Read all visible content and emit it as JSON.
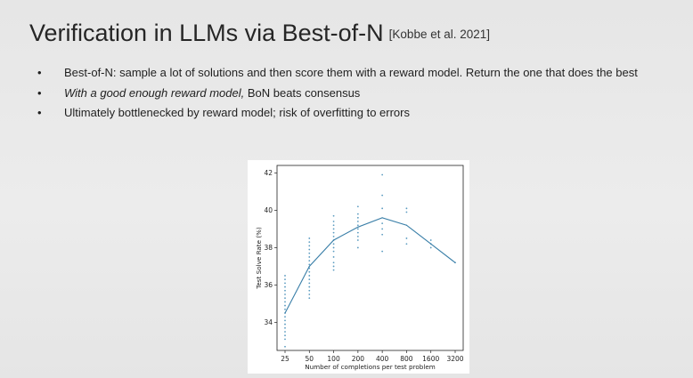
{
  "slide": {
    "title": "Verification in LLMs via Best-of-N",
    "citation": "[Kobbe et al. 2021]",
    "bullets": [
      {
        "bullet": "•",
        "italic": "",
        "text": "Best-of-N: sample a lot of solutions and then score them with a reward model. Return the one that does the best"
      },
      {
        "bullet": "•",
        "italic": "With a good enough reward model,",
        "text": " BoN beats consensus"
      },
      {
        "bullet": "•",
        "italic": "",
        "text": "Ultimately bottlenecked by reward model; risk of overfitting to errors"
      }
    ]
  },
  "colors": {
    "line": "#3a7fa8",
    "points": "#5b9bc0",
    "background": "#e9e9e9",
    "plot_bg": "#ffffff"
  },
  "chart_data": {
    "type": "line",
    "xlabel": "Number of completions per test problem",
    "ylabel": "Test Solve Rate (%)",
    "x_scale": "log2",
    "categories": [
      "25",
      "50",
      "100",
      "200",
      "400",
      "800",
      "1600",
      "3200"
    ],
    "x_ticks": [
      "25",
      "50",
      "100",
      "200",
      "400",
      "800",
      "1600",
      "3200"
    ],
    "y_ticks": [
      "34",
      "36",
      "38",
      "40",
      "42"
    ],
    "ylim": [
      32.5,
      42.4
    ],
    "grid": false,
    "series": [
      {
        "values": [
          34.5,
          37.0,
          38.4,
          39.1,
          39.6,
          39.2,
          38.2,
          37.2
        ]
      }
    ],
    "scatter_points": [
      {
        "x": "25",
        "values": [
          32.7,
          33.1,
          33.3,
          33.5,
          33.7,
          33.9,
          34.1,
          34.3,
          34.5,
          34.7,
          34.9,
          35.1,
          35.3,
          35.5,
          35.7,
          35.9,
          36.1,
          36.3,
          36.5
        ]
      },
      {
        "x": "50",
        "values": [
          35.3,
          35.5,
          35.7,
          35.9,
          36.1,
          36.3,
          36.5,
          36.7,
          36.9,
          37.1,
          37.3,
          37.5,
          37.7,
          37.9,
          38.1,
          38.3,
          38.5
        ]
      },
      {
        "x": "100",
        "values": [
          36.8,
          37.0,
          37.2,
          37.5,
          37.8,
          38.0,
          38.2,
          38.4,
          38.6,
          38.8,
          39.0,
          39.2,
          39.4,
          39.7
        ]
      },
      {
        "x": "200",
        "values": [
          38.0,
          38.4,
          38.6,
          38.8,
          39.0,
          39.2,
          39.4,
          39.6,
          39.8,
          40.2
        ]
      },
      {
        "x": "400",
        "values": [
          37.8,
          38.7,
          39.0,
          39.3,
          40.1,
          40.8,
          41.9
        ]
      },
      {
        "x": "800",
        "values": [
          38.2,
          38.5,
          39.9,
          40.1
        ]
      },
      {
        "x": "1600",
        "values": [
          38.0,
          38.2,
          38.4
        ]
      },
      {
        "x": "3200",
        "values": [
          37.2
        ]
      }
    ]
  }
}
